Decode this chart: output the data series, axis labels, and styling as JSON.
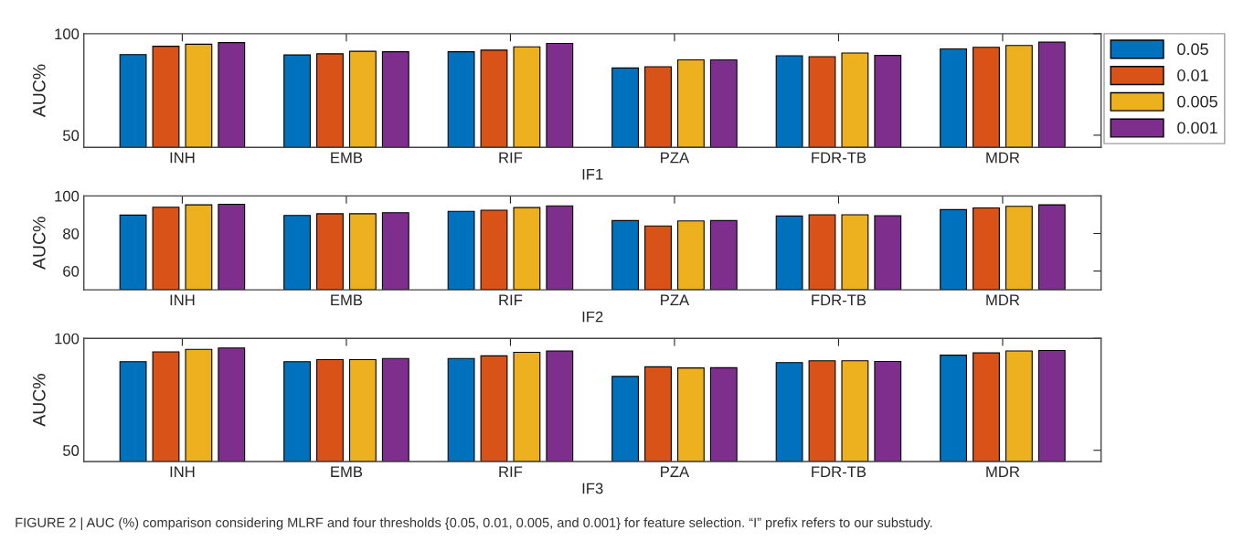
{
  "chart_data": [
    {
      "type": "bar",
      "xlabel": "IF1",
      "ylabel": "AUC%",
      "categories": [
        "INH",
        "EMB",
        "RIF",
        "PZA",
        "FDR-TB",
        "MDR"
      ],
      "ylim": [
        44,
        100
      ],
      "yticks": [
        50,
        100
      ],
      "legend": "right",
      "grid": false,
      "series": [
        {
          "name": "0.05",
          "color": "#0072bd",
          "values": [
            89.7,
            89.5,
            91.1,
            83.1,
            89.1,
            92.5
          ]
        },
        {
          "name": "0.01",
          "color": "#d95319",
          "values": [
            93.8,
            90.1,
            91.9,
            83.7,
            88.7,
            93.3
          ]
        },
        {
          "name": "0.005",
          "color": "#edb120",
          "values": [
            94.8,
            91.3,
            93.5,
            87.1,
            90.5,
            94.2
          ]
        },
        {
          "name": "0.001",
          "color": "#7e2f8e",
          "values": [
            95.6,
            91.1,
            95.2,
            87.1,
            89.3,
            95.8
          ]
        }
      ]
    },
    {
      "type": "bar",
      "xlabel": "IF2",
      "ylabel": "AUC%",
      "categories": [
        "INH",
        "EMB",
        "RIF",
        "PZA",
        "FDR-TB",
        "MDR"
      ],
      "ylim": [
        50,
        100
      ],
      "yticks": [
        60,
        80,
        100
      ],
      "grid": false,
      "series": [
        {
          "color": "#0072bd",
          "values": [
            89.8,
            89.6,
            91.8,
            86.9,
            89.3,
            92.7
          ]
        },
        {
          "color": "#d95319",
          "values": [
            94.0,
            90.5,
            92.4,
            84.0,
            90.0,
            93.6
          ]
        },
        {
          "color": "#edb120",
          "values": [
            95.3,
            90.5,
            93.8,
            86.7,
            90.0,
            94.5
          ]
        },
        {
          "color": "#7e2f8e",
          "values": [
            95.6,
            91.1,
            94.7,
            86.9,
            89.5,
            95.3
          ]
        }
      ]
    },
    {
      "type": "bar",
      "xlabel": "IF3",
      "ylabel": "AUC%",
      "categories": [
        "INH",
        "EMB",
        "RIF",
        "PZA",
        "FDR-TB",
        "MDR"
      ],
      "ylim": [
        45,
        100
      ],
      "yticks": [
        50,
        100
      ],
      "grid": false,
      "annotations": [
        "FIGURE 2 | AUC (%) comparison considering MLRF and four thresholds {0.05, 0.01, 0.005, and 0.001} for feature selection. “I” prefix refers to our substudy."
      ],
      "series": [
        {
          "color": "#0072bd",
          "values": [
            89.6,
            89.6,
            91.0,
            83.0,
            89.2,
            92.5
          ]
        },
        {
          "color": "#d95319",
          "values": [
            94.0,
            90.5,
            92.2,
            87.3,
            90.0,
            93.5
          ]
        },
        {
          "color": "#edb120",
          "values": [
            95.1,
            90.5,
            93.8,
            86.8,
            90.0,
            94.4
          ]
        },
        {
          "color": "#7e2f8e",
          "values": [
            95.7,
            91.0,
            94.4,
            86.9,
            89.7,
            94.6
          ]
        }
      ]
    }
  ]
}
